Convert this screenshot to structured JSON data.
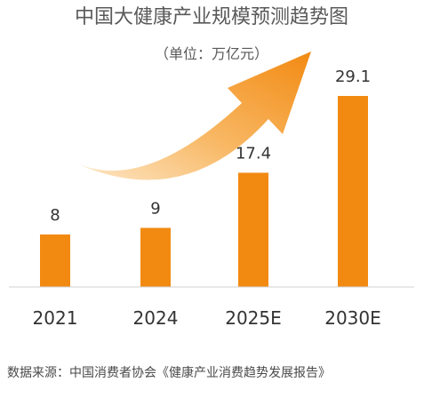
{
  "chart_data": {
    "type": "bar",
    "title": "中国大健康产业规模预测趋势图",
    "subtitle": "（单位：万亿元）",
    "categories": [
      "2021",
      "2024",
      "2025E",
      "2030E"
    ],
    "values": [
      8,
      9,
      17.4,
      29.1
    ],
    "value_labels": [
      "8",
      "9",
      "17.4",
      "29.1"
    ],
    "ylim": [
      0,
      30
    ],
    "grid": false,
    "legend": "none",
    "colors": {
      "bar": "#F28A12",
      "title": "#595959",
      "subtitle": "#595959",
      "tick": "#333333",
      "source": "#4a4a4a",
      "axis": "#d0d0d0",
      "arrow_start": "#FDE7C7",
      "arrow_end": "#F28A12"
    },
    "source": "数据来源：中国消费者协会《健康产业消费趋势发展报告》",
    "decoration": "trend-arrow-icon"
  }
}
